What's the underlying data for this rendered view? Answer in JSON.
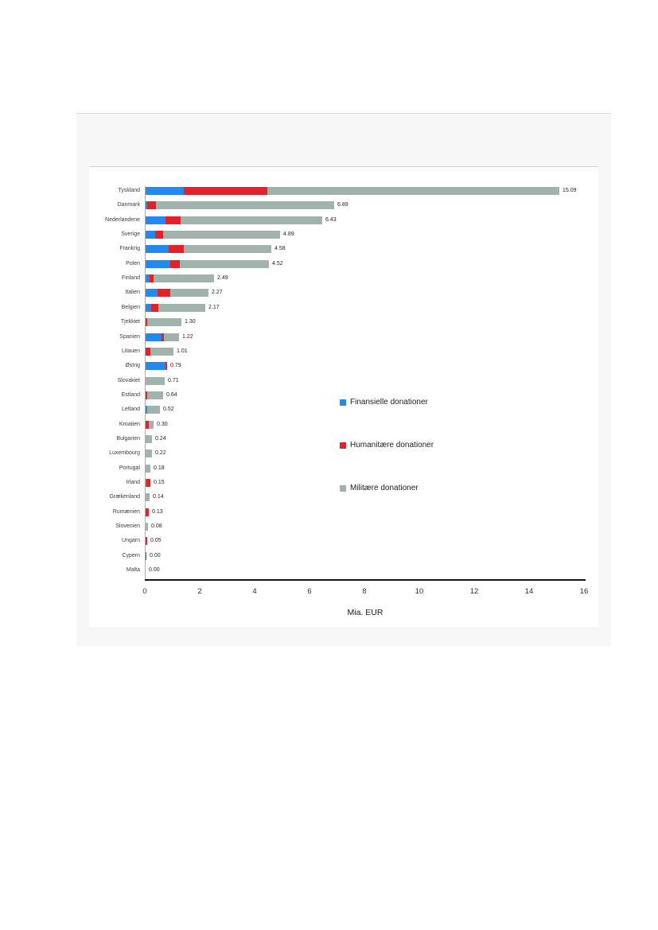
{
  "page": {
    "background": "#ffffff",
    "panel_background": "#f6f6f6"
  },
  "chart_data": {
    "type": "bar",
    "orientation": "horizontal",
    "stacked": true,
    "title": "",
    "xlabel": "Mia. EUR",
    "ylabel": "",
    "xlim": [
      0,
      16
    ],
    "x_ticks": [
      0,
      2,
      4,
      6,
      8,
      10,
      12,
      14,
      16
    ],
    "grid": false,
    "legend_position": "center-right",
    "legend": [
      {
        "name": "Finansielle donationer",
        "color": "#2389f0"
      },
      {
        "name": "Humanitære donationer",
        "color": "#e22128"
      },
      {
        "name": "Militære donationer",
        "color": "#a0b4ab"
      }
    ],
    "categories": [
      "Tyskland",
      "Danmark",
      "Nederlandene",
      "Sverige",
      "Frankrig",
      "Polen",
      "Finland",
      "Italien",
      "Belgien",
      "Tjekkiet",
      "Spanien",
      "Litauen",
      "Østrig",
      "Slovakiet",
      "Estland",
      "Letland",
      "Kroatien",
      "Bulgarien",
      "Luxembourg",
      "Portugal",
      "Irland",
      "Grækenland",
      "Rumænien",
      "Slovenien",
      "Ungarn",
      "Cypern",
      "Malta"
    ],
    "series": [
      {
        "name": "Finansielle donationer",
        "values": [
          1.4,
          0.07,
          0.72,
          0.35,
          0.84,
          0.91,
          0.14,
          0.44,
          0.19,
          0.0,
          0.59,
          0.0,
          0.72,
          0.0,
          0.0,
          0.07,
          0.0,
          0.0,
          0.0,
          0.0,
          0.01,
          0.0,
          0.0,
          0.0,
          0.0,
          0.0,
          0.0
        ]
      },
      {
        "name": "Humanitære donationer",
        "values": [
          3.05,
          0.32,
          0.56,
          0.29,
          0.56,
          0.36,
          0.15,
          0.45,
          0.27,
          0.06,
          0.08,
          0.17,
          0.07,
          0.0,
          0.07,
          0.0,
          0.12,
          0.0,
          0.0,
          0.0,
          0.14,
          0.0,
          0.13,
          0.0,
          0.05,
          0.004,
          0.0
        ]
      },
      {
        "name": "Militære donationer",
        "values": [
          10.64,
          6.5,
          5.15,
          4.25,
          3.18,
          3.25,
          2.2,
          1.38,
          1.71,
          1.24,
          0.55,
          0.84,
          0.0,
          0.71,
          0.57,
          0.45,
          0.18,
          0.24,
          0.22,
          0.18,
          0.0,
          0.14,
          0.0,
          0.08,
          0.0,
          0.0,
          0.0
        ]
      }
    ],
    "total_labels": [
      "15.09",
      "6.89",
      "6.43",
      "4.89",
      "4.58",
      "4.52",
      "2.49",
      "2.27",
      "2.17",
      "1.30",
      "1.22",
      "1.01",
      "0.79",
      "0.71",
      "0.64",
      "0.52",
      "0.30",
      "0.24",
      "0.22",
      "0.18",
      "0.15",
      "0.14",
      "0.13",
      "0.08",
      "0.05",
      "0.00",
      "0.00"
    ]
  }
}
